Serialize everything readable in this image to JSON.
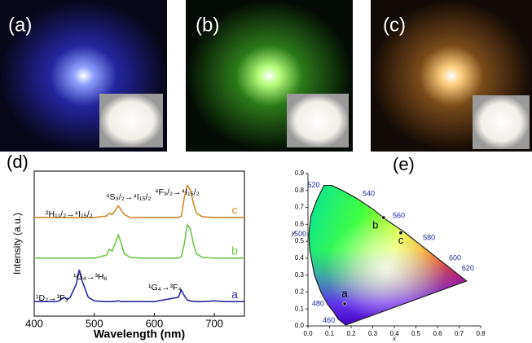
{
  "panels": [
    {
      "label": "(a)"
    },
    {
      "label": "(b)"
    },
    {
      "label": "(c)"
    }
  ],
  "chart_data": [
    {
      "type": "line",
      "label": "(d)",
      "xlabel": "Wavelength (nm)",
      "ylabel": "Intensity (a.u.)",
      "xlim": [
        400,
        750
      ],
      "ylim": [
        0,
        10
      ],
      "xticks": [
        400,
        500,
        600,
        700
      ],
      "x": [
        400,
        420,
        440,
        450,
        455,
        460,
        470,
        475,
        480,
        490,
        500,
        520,
        525,
        530,
        540,
        545,
        550,
        560,
        580,
        600,
        640,
        645,
        650,
        655,
        660,
        665,
        670,
        680,
        700,
        720,
        750
      ],
      "series": [
        {
          "name": "c",
          "color": "#d08a2a",
          "values": [
            6.8,
            6.8,
            6.8,
            6.8,
            6.8,
            6.8,
            6.8,
            6.8,
            6.8,
            6.8,
            6.8,
            6.9,
            7.1,
            7.0,
            7.6,
            7.3,
            7.0,
            6.8,
            6.8,
            6.8,
            6.8,
            6.9,
            8.2,
            9.0,
            8.7,
            7.8,
            7.1,
            6.85,
            6.8,
            6.8,
            6.8
          ]
        },
        {
          "name": "b",
          "color": "#6cc64a",
          "values": [
            4,
            4,
            4,
            4,
            4,
            4,
            4,
            4,
            4,
            4,
            4,
            4.2,
            4.6,
            4.5,
            5.6,
            5.0,
            4.3,
            4.05,
            4,
            4,
            4,
            4.1,
            5.0,
            6.3,
            6.0,
            5.0,
            4.3,
            4.05,
            4,
            4,
            4
          ]
        },
        {
          "name": "a",
          "color": "#2a2aa0",
          "values": [
            1,
            1,
            1.02,
            1.3,
            1.15,
            1.3,
            2.2,
            3.2,
            2.4,
            1.3,
            1.05,
            1,
            1,
            1,
            1.05,
            1,
            1,
            1,
            1,
            1,
            1.3,
            1.8,
            1.4,
            1.1,
            1.05,
            1.02,
            1,
            1,
            1.05,
            1,
            1
          ]
        }
      ],
      "annotations": [
        "¹D₂→³F₃",
        "¹G₄→³H₆",
        "¹G₄→³F₄",
        "²H₁₁/₂→⁴I₁₅/₂",
        "⁴S₃/₂→⁴I₁₅/₂",
        "⁴F₉/₂→⁴I₁₅/₂"
      ]
    },
    {
      "type": "scatter",
      "label": "(e)",
      "xlabel": "x",
      "ylabel": "y",
      "xlim": [
        0,
        0.8
      ],
      "ylim": [
        0,
        0.9
      ],
      "xticks": [
        {
          "value": 0,
          "label": "0.0"
        },
        0.1,
        0.2,
        0.3,
        0.4,
        0.5,
        0.6,
        0.7,
        0.8
      ],
      "yticks": [
        {
          "value": 0,
          "label": "0.0"
        },
        0.1,
        0.2,
        0.3,
        0.4,
        0.5,
        0.6,
        0.7,
        0.8,
        0.9
      ],
      "points": [
        {
          "name": "a",
          "x": 0.17,
          "y": 0.13
        },
        {
          "name": "b",
          "x": 0.35,
          "y": 0.64
        },
        {
          "name": "c",
          "x": 0.43,
          "y": 0.55
        }
      ],
      "locus_labels": [
        {
          "text": "460",
          "x": 0.14,
          "y": 0.03
        },
        {
          "text": "480",
          "x": 0.09,
          "y": 0.13
        },
        {
          "text": "500",
          "x": 0.008,
          "y": 0.54
        },
        {
          "text": "520",
          "x": 0.07,
          "y": 0.83
        },
        {
          "text": "540",
          "x": 0.23,
          "y": 0.75
        },
        {
          "text": "560",
          "x": 0.37,
          "y": 0.62
        },
        {
          "text": "580",
          "x": 0.51,
          "y": 0.49
        },
        {
          "text": "600",
          "x": 0.63,
          "y": 0.37
        },
        {
          "text": "620",
          "x": 0.69,
          "y": 0.31
        }
      ]
    }
  ]
}
